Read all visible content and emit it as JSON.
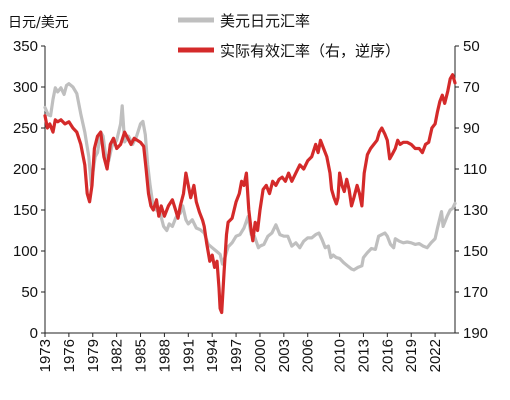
{
  "chart_data": {
    "type": "line",
    "title": "",
    "y_left_label": "日元/美元",
    "y_left_range": [
      0,
      350
    ],
    "y_left_ticks": [
      "0",
      "50",
      "100",
      "150",
      "200",
      "250",
      "300",
      "350"
    ],
    "y_right_range": [
      50,
      190
    ],
    "y_right_inverted": true,
    "y_right_ticks": [
      "50",
      "70",
      "90",
      "110",
      "130",
      "150",
      "170",
      "190"
    ],
    "x_range": [
      1973,
      2024.5
    ],
    "x_ticks": [
      "1973",
      "1976",
      "1979",
      "1982",
      "1985",
      "1988",
      "1991",
      "1994",
      "1997",
      "2000",
      "2003",
      "2006",
      "2010",
      "2013",
      "2016",
      "2019",
      "2022"
    ],
    "legend_position": "top",
    "grid": false,
    "series": [
      {
        "name": "美元日元汇率",
        "axis": "left",
        "color": "#bfbfbf",
        "points": [
          [
            1973.0,
            275
          ],
          [
            1973.4,
            266
          ],
          [
            1973.7,
            265
          ],
          [
            1974.0,
            285
          ],
          [
            1974.3,
            299
          ],
          [
            1974.6,
            294
          ],
          [
            1975.0,
            299
          ],
          [
            1975.4,
            291
          ],
          [
            1975.7,
            302
          ],
          [
            1976.0,
            304
          ],
          [
            1976.5,
            300
          ],
          [
            1977.0,
            292
          ],
          [
            1977.5,
            267
          ],
          [
            1978.0,
            245
          ],
          [
            1978.5,
            215
          ],
          [
            1978.8,
            180
          ],
          [
            1979.0,
            195
          ],
          [
            1979.3,
            215
          ],
          [
            1979.6,
            220
          ],
          [
            1980.0,
            245
          ],
          [
            1980.3,
            240
          ],
          [
            1980.6,
            218
          ],
          [
            1981.0,
            210
          ],
          [
            1981.4,
            228
          ],
          [
            1981.8,
            232
          ],
          [
            1982.0,
            235
          ],
          [
            1982.5,
            255
          ],
          [
            1982.7,
            277
          ],
          [
            1983.0,
            233
          ],
          [
            1983.5,
            240
          ],
          [
            1984.0,
            230
          ],
          [
            1984.5,
            240
          ],
          [
            1985.0,
            255
          ],
          [
            1985.3,
            258
          ],
          [
            1985.6,
            242
          ],
          [
            1985.9,
            205
          ],
          [
            1986.2,
            180
          ],
          [
            1986.5,
            160
          ],
          [
            1987.0,
            150
          ],
          [
            1987.5,
            145
          ],
          [
            1987.9,
            130
          ],
          [
            1988.3,
            125
          ],
          [
            1988.6,
            133
          ],
          [
            1989.0,
            130
          ],
          [
            1989.4,
            140
          ],
          [
            1989.7,
            145
          ],
          [
            1990.0,
            146
          ],
          [
            1990.3,
            155
          ],
          [
            1990.7,
            138
          ],
          [
            1991.0,
            133
          ],
          [
            1991.5,
            138
          ],
          [
            1992.0,
            128
          ],
          [
            1992.5,
            126
          ],
          [
            1993.0,
            122
          ],
          [
            1993.5,
            108
          ],
          [
            1994.0,
            104
          ],
          [
            1994.5,
            100
          ],
          [
            1995.0,
            96
          ],
          [
            1995.3,
            84
          ],
          [
            1995.6,
            92
          ],
          [
            1996.0,
            105
          ],
          [
            1996.5,
            110
          ],
          [
            1997.0,
            118
          ],
          [
            1997.5,
            120
          ],
          [
            1998.0,
            128
          ],
          [
            1998.5,
            142
          ],
          [
            1998.9,
            120
          ],
          [
            1999.3,
            118
          ],
          [
            1999.8,
            104
          ],
          [
            2000.0,
            106
          ],
          [
            2000.5,
            108
          ],
          [
            2001.0,
            118
          ],
          [
            2001.5,
            122
          ],
          [
            2002.0,
            132
          ],
          [
            2002.5,
            120
          ],
          [
            2003.0,
            118
          ],
          [
            2003.5,
            118
          ],
          [
            2004.0,
            106
          ],
          [
            2004.5,
            110
          ],
          [
            2005.0,
            104
          ],
          [
            2005.5,
            112
          ],
          [
            2006.0,
            116
          ],
          [
            2006.5,
            116
          ],
          [
            2007.0,
            120
          ],
          [
            2007.4,
            122
          ],
          [
            2007.8,
            114
          ],
          [
            2008.2,
            104
          ],
          [
            2008.6,
            106
          ],
          [
            2008.9,
            92
          ],
          [
            2009.2,
            95
          ],
          [
            2009.6,
            92
          ],
          [
            2010.0,
            91
          ],
          [
            2010.5,
            86
          ],
          [
            2011.0,
            82
          ],
          [
            2011.5,
            78
          ],
          [
            2011.8,
            77
          ],
          [
            2012.3,
            80
          ],
          [
            2012.8,
            82
          ],
          [
            2013.0,
            92
          ],
          [
            2013.5,
            98
          ],
          [
            2014.0,
            103
          ],
          [
            2014.5,
            102
          ],
          [
            2014.9,
            118
          ],
          [
            2015.3,
            120
          ],
          [
            2015.7,
            122
          ],
          [
            2016.0,
            118
          ],
          [
            2016.4,
            108
          ],
          [
            2016.8,
            104
          ],
          [
            2017.0,
            115
          ],
          [
            2017.5,
            112
          ],
          [
            2018.0,
            110
          ],
          [
            2018.5,
            111
          ],
          [
            2019.0,
            110
          ],
          [
            2019.5,
            108
          ],
          [
            2020.0,
            109
          ],
          [
            2020.5,
            106
          ],
          [
            2021.0,
            104
          ],
          [
            2021.5,
            110
          ],
          [
            2022.0,
            115
          ],
          [
            2022.3,
            128
          ],
          [
            2022.8,
            148
          ],
          [
            2023.0,
            130
          ],
          [
            2023.5,
            142
          ],
          [
            2023.9,
            150
          ],
          [
            2024.2,
            152
          ],
          [
            2024.5,
            158
          ]
        ]
      },
      {
        "name": "实际有效汇率（右，逆序）",
        "axis": "right",
        "color": "#d42a2a",
        "points": [
          [
            1973.0,
            84
          ],
          [
            1973.3,
            90
          ],
          [
            1973.6,
            88
          ],
          [
            1974.0,
            92
          ],
          [
            1974.3,
            86
          ],
          [
            1974.6,
            87
          ],
          [
            1975.0,
            86
          ],
          [
            1975.5,
            88
          ],
          [
            1976.0,
            87
          ],
          [
            1976.5,
            90
          ],
          [
            1977.0,
            92
          ],
          [
            1977.5,
            98
          ],
          [
            1978.0,
            108
          ],
          [
            1978.3,
            122
          ],
          [
            1978.6,
            126
          ],
          [
            1978.9,
            118
          ],
          [
            1979.2,
            100
          ],
          [
            1979.6,
            94
          ],
          [
            1980.0,
            92
          ],
          [
            1980.4,
            104
          ],
          [
            1980.8,
            110
          ],
          [
            1981.2,
            98
          ],
          [
            1981.6,
            95
          ],
          [
            1982.0,
            100
          ],
          [
            1982.5,
            98
          ],
          [
            1983.0,
            92
          ],
          [
            1983.4,
            95
          ],
          [
            1983.8,
            98
          ],
          [
            1984.2,
            95
          ],
          [
            1984.6,
            96
          ],
          [
            1985.0,
            97
          ],
          [
            1985.4,
            99
          ],
          [
            1985.7,
            110
          ],
          [
            1986.0,
            122
          ],
          [
            1986.3,
            128
          ],
          [
            1986.6,
            130
          ],
          [
            1987.0,
            125
          ],
          [
            1987.3,
            133
          ],
          [
            1987.6,
            128
          ],
          [
            1988.0,
            133
          ],
          [
            1988.5,
            128
          ],
          [
            1989.0,
            125
          ],
          [
            1989.4,
            130
          ],
          [
            1989.7,
            134
          ],
          [
            1990.0,
            128
          ],
          [
            1990.4,
            122
          ],
          [
            1990.7,
            112
          ],
          [
            1991.0,
            118
          ],
          [
            1991.3,
            124
          ],
          [
            1991.7,
            118
          ],
          [
            1992.0,
            126
          ],
          [
            1992.4,
            131
          ],
          [
            1992.8,
            135
          ],
          [
            1993.0,
            138
          ],
          [
            1993.3,
            146
          ],
          [
            1993.7,
            155
          ],
          [
            1994.0,
            152
          ],
          [
            1994.3,
            158
          ],
          [
            1994.6,
            155
          ],
          [
            1994.85,
            168
          ],
          [
            1995.0,
            178
          ],
          [
            1995.2,
            180
          ],
          [
            1995.5,
            160
          ],
          [
            1995.8,
            142
          ],
          [
            1996.0,
            136
          ],
          [
            1996.5,
            134
          ],
          [
            1997.0,
            126
          ],
          [
            1997.4,
            122
          ],
          [
            1997.7,
            116
          ],
          [
            1998.0,
            118
          ],
          [
            1998.3,
            112
          ],
          [
            1998.6,
            130
          ],
          [
            1998.9,
            140
          ],
          [
            1999.1,
            145
          ],
          [
            1999.4,
            136
          ],
          [
            1999.7,
            140
          ],
          [
            2000.0,
            130
          ],
          [
            2000.4,
            120
          ],
          [
            2000.8,
            118
          ],
          [
            2001.2,
            122
          ],
          [
            2001.6,
            116
          ],
          [
            2002.0,
            118
          ],
          [
            2002.4,
            115
          ],
          [
            2002.8,
            114
          ],
          [
            2003.2,
            116
          ],
          [
            2003.6,
            112
          ],
          [
            2004.0,
            116
          ],
          [
            2004.5,
            112
          ],
          [
            2005.0,
            108
          ],
          [
            2005.5,
            110
          ],
          [
            2006.0,
            106
          ],
          [
            2006.5,
            104
          ],
          [
            2007.0,
            98
          ],
          [
            2007.3,
            102
          ],
          [
            2007.6,
            96
          ],
          [
            2008.0,
            100
          ],
          [
            2008.4,
            104
          ],
          [
            2008.8,
            112
          ],
          [
            2009.0,
            120
          ],
          [
            2009.3,
            124
          ],
          [
            2009.6,
            127
          ],
          [
            2009.8,
            124
          ],
          [
            2010.0,
            112
          ],
          [
            2010.3,
            118
          ],
          [
            2010.6,
            121
          ],
          [
            2010.9,
            115
          ],
          [
            2011.2,
            120
          ],
          [
            2011.5,
            128
          ],
          [
            2011.8,
            124
          ],
          [
            2012.2,
            118
          ],
          [
            2012.5,
            122
          ],
          [
            2012.8,
            128
          ],
          [
            2013.1,
            112
          ],
          [
            2013.5,
            103
          ],
          [
            2013.9,
            100
          ],
          [
            2014.3,
            98
          ],
          [
            2014.7,
            96
          ],
          [
            2015.0,
            92
          ],
          [
            2015.3,
            90
          ],
          [
            2015.7,
            93
          ],
          [
            2016.0,
            96
          ],
          [
            2016.3,
            105
          ],
          [
            2016.6,
            103
          ],
          [
            2017.0,
            100
          ],
          [
            2017.3,
            96
          ],
          [
            2017.6,
            98
          ],
          [
            2018.0,
            97
          ],
          [
            2018.5,
            97
          ],
          [
            2019.0,
            98
          ],
          [
            2019.5,
            100
          ],
          [
            2020.0,
            100
          ],
          [
            2020.4,
            102
          ],
          [
            2020.8,
            98
          ],
          [
            2021.2,
            97
          ],
          [
            2021.6,
            90
          ],
          [
            2022.0,
            88
          ],
          [
            2022.3,
            82
          ],
          [
            2022.6,
            77
          ],
          [
            2022.9,
            74
          ],
          [
            2023.2,
            78
          ],
          [
            2023.6,
            72
          ],
          [
            2023.9,
            66
          ],
          [
            2024.2,
            64
          ],
          [
            2024.5,
            68
          ]
        ]
      }
    ]
  }
}
